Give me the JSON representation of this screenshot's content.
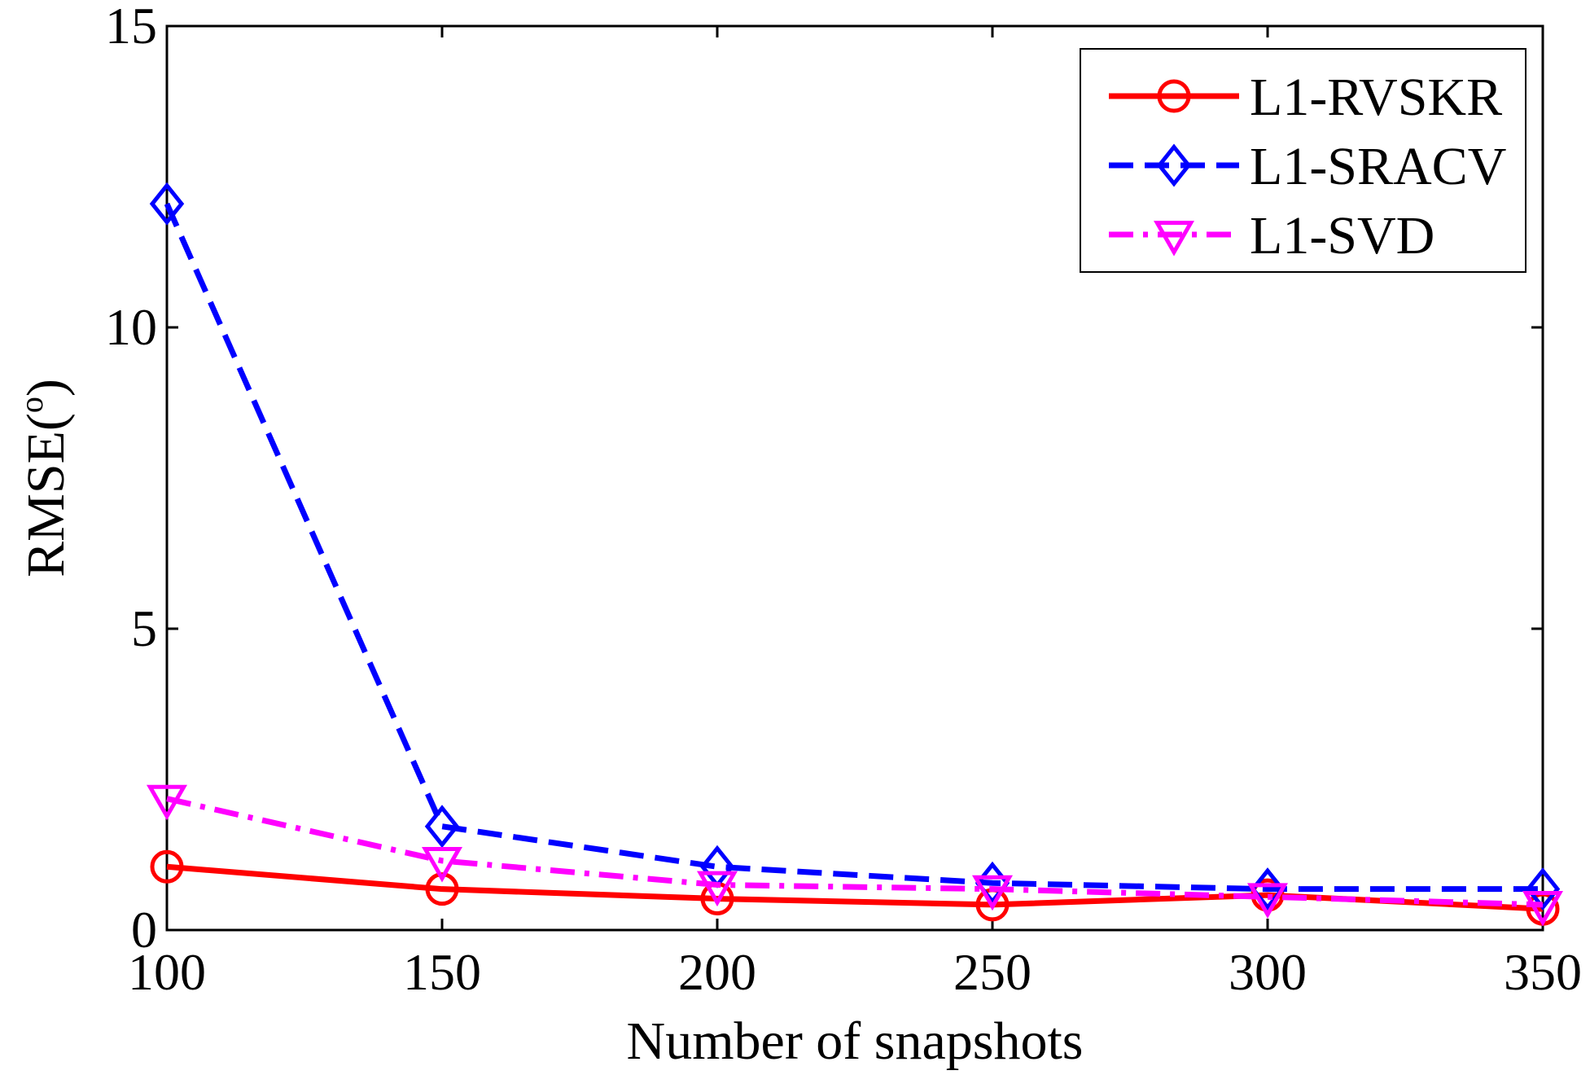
{
  "chart_data": {
    "type": "line",
    "title": "",
    "xlabel": "Number of snapshots",
    "ylabel_main": "RMSE(",
    "ylabel_sup": "o",
    "ylabel_end": ")",
    "x": [
      100,
      150,
      200,
      250,
      300,
      350
    ],
    "xlim": [
      100,
      350
    ],
    "ylim": [
      0,
      15
    ],
    "xticks": [
      100,
      150,
      200,
      250,
      300,
      350
    ],
    "yticks": [
      0,
      5,
      10,
      15
    ],
    "grid": false,
    "legend_position": "top-right",
    "series": [
      {
        "name": "L1-RVSKR",
        "color": "#ff0000",
        "marker": "circle",
        "dash": "solid",
        "values": [
          1.05,
          0.68,
          0.52,
          0.42,
          0.58,
          0.35
        ]
      },
      {
        "name": "L1-SRACV",
        "color": "#0000ff",
        "marker": "diamond",
        "dash": "dashed",
        "values": [
          12.05,
          1.72,
          1.05,
          0.78,
          0.68,
          0.68
        ]
      },
      {
        "name": "L1-SVD",
        "color": "#ff00ff",
        "marker": "triangle-down",
        "dash": "dashdot",
        "values": [
          2.18,
          1.15,
          0.75,
          0.68,
          0.55,
          0.42
        ]
      }
    ]
  }
}
